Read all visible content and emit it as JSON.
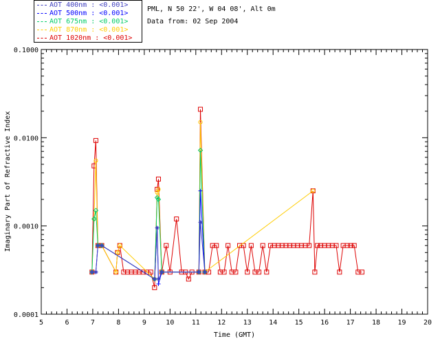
{
  "legend": [
    {
      "label": "AOT  400nm : <0.001>",
      "color": "#3f3fbf"
    },
    {
      "label": "AOT  500nm : <0.001>",
      "color": "#0000ff"
    },
    {
      "label": "AOT  675nm : <0.001>",
      "color": "#00cc66"
    },
    {
      "label": "AOT  870nm : <0.001>",
      "color": "#ffcc00"
    },
    {
      "label": "AOT 1020nm : <0.001>",
      "color": "#dd0000"
    }
  ],
  "info": {
    "site": "PML, N 50 22', W 04 08', Alt 0m",
    "date": "Data from: 02 Sep 2004"
  },
  "chart_data": {
    "type": "line",
    "title": "",
    "xlabel": "Time (GMT)",
    "ylabel": "Imaginary Part of Refractive Index",
    "x_range": [
      5,
      20
    ],
    "y_range": [
      0.0001,
      0.1
    ],
    "y_scale": "log",
    "x_ticks": [
      "5",
      "6",
      "7",
      "8",
      "9",
      "10",
      "11",
      "12",
      "13",
      "14",
      "15",
      "16",
      "17",
      "18",
      "19",
      "20"
    ],
    "y_ticks": [
      "0.0001",
      "0.0010",
      "0.0100",
      "0.1000"
    ],
    "grid": false,
    "legend_position": "top-left, outside plot",
    "series": [
      {
        "name": "AOT 1020nm : <0.001>",
        "color": "#dd0000",
        "marker": "square",
        "x": [
          6.97,
          7.05,
          7.12,
          7.2,
          7.35,
          7.9,
          7.96,
          8.05,
          8.2,
          8.35,
          8.5,
          8.65,
          8.8,
          8.95,
          9.1,
          9.25,
          9.4,
          9.5,
          9.55,
          9.68,
          9.85,
          10.0,
          10.25,
          10.45,
          10.6,
          10.72,
          10.85,
          11.12,
          11.18,
          11.35,
          11.5,
          11.65,
          11.8,
          11.95,
          12.1,
          12.25,
          12.4,
          12.55,
          12.7,
          12.85,
          13.0,
          13.15,
          13.3,
          13.45,
          13.6,
          13.75,
          13.9,
          14.05,
          14.2,
          14.35,
          14.5,
          14.65,
          14.8,
          14.95,
          15.1,
          15.25,
          15.4,
          15.55,
          15.62,
          15.72,
          15.85,
          16.0,
          16.15,
          16.3,
          16.45,
          16.58,
          16.72,
          16.88,
          17.02,
          17.15,
          17.3,
          17.45
        ],
        "y": [
          0.0003,
          0.0048,
          0.0093,
          0.0006,
          0.0006,
          0.0003,
          0.0005,
          0.0006,
          0.0003,
          0.0003,
          0.0003,
          0.0003,
          0.0003,
          0.0003,
          0.0003,
          0.0003,
          0.0002,
          0.0026,
          0.0034,
          0.0003,
          0.0006,
          0.0003,
          0.0012,
          0.0003,
          0.0003,
          0.00025,
          0.0003,
          0.0003,
          0.021,
          0.0003,
          0.0003,
          0.0006,
          0.0006,
          0.0003,
          0.0003,
          0.0006,
          0.0003,
          0.0003,
          0.0006,
          0.0006,
          0.0003,
          0.0006,
          0.0003,
          0.0003,
          0.0006,
          0.0003,
          0.0006,
          0.0006,
          0.0006,
          0.0006,
          0.0006,
          0.0006,
          0.0006,
          0.0006,
          0.0006,
          0.0006,
          0.0006,
          0.0025,
          0.0003,
          0.0006,
          0.0006,
          0.0006,
          0.0006,
          0.0006,
          0.0006,
          0.0003,
          0.0006,
          0.0006,
          0.0006,
          0.0006,
          0.0003,
          0.0003
        ]
      },
      {
        "name": "AOT 870nm : <0.001>",
        "color": "#ffcc00",
        "marker": "circle",
        "x": [
          6.97,
          7.05,
          7.12,
          7.2,
          7.35,
          7.9,
          7.96,
          8.05,
          9.4,
          9.5,
          9.55,
          9.68,
          11.12,
          11.18,
          11.35,
          15.55
        ],
        "y": [
          0.0003,
          0.0012,
          0.0055,
          0.0006,
          0.0006,
          0.0003,
          0.0005,
          0.0006,
          0.00025,
          0.0024,
          0.0026,
          0.0003,
          0.0003,
          0.015,
          0.0003,
          0.0025
        ]
      },
      {
        "name": "AOT 675nm : <0.001>",
        "color": "#00cc66",
        "marker": "diamond",
        "x": [
          6.97,
          7.05,
          7.12,
          7.2,
          7.35,
          9.4,
          9.5,
          9.55,
          9.68,
          11.12,
          11.18,
          11.35
        ],
        "y": [
          0.0003,
          0.0012,
          0.0015,
          0.0006,
          0.0006,
          0.00025,
          0.0021,
          0.002,
          0.0003,
          0.0003,
          0.0072,
          0.0003
        ]
      },
      {
        "name": "AOT 500nm : <0.001>",
        "color": "#0000ff",
        "marker": "plus",
        "x": [
          6.97,
          7.12,
          7.2,
          7.35,
          9.4,
          9.5,
          9.55,
          9.68,
          11.12,
          11.18,
          11.35
        ],
        "y": [
          0.0003,
          0.0003,
          0.0006,
          0.0006,
          0.00025,
          0.00095,
          0.00022,
          0.0003,
          0.0003,
          0.0025,
          0.0003
        ]
      },
      {
        "name": "AOT 400nm : <0.001>",
        "color": "#3f3fbf",
        "marker": "asterisk",
        "x": [
          6.97,
          7.12,
          7.2,
          7.35,
          9.4,
          9.5,
          9.55,
          9.68,
          11.12,
          11.18,
          11.35
        ],
        "y": [
          0.0003,
          0.0003,
          0.0006,
          0.0006,
          0.00025,
          0.00095,
          0.00025,
          0.0003,
          0.0003,
          0.0011,
          0.0003
        ]
      }
    ]
  }
}
